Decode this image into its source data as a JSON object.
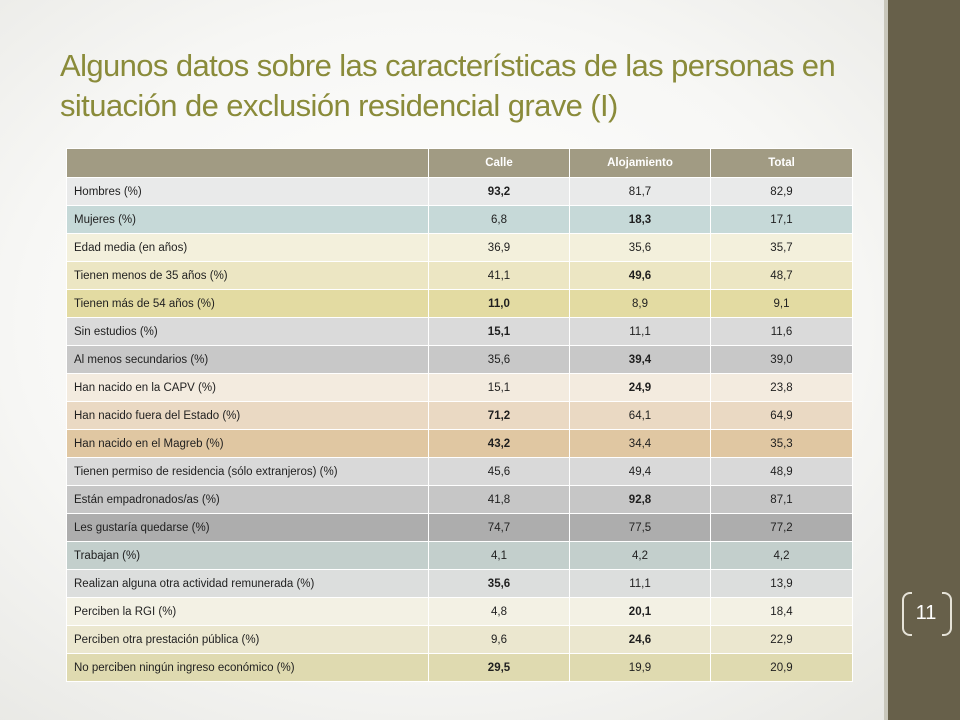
{
  "title": "Algunos datos sobre las características de las personas en situación de exclusión residencial grave (I)",
  "page_number": "11",
  "table": {
    "headers": [
      "",
      "Calle",
      "Alojamiento",
      "Total"
    ],
    "rows": [
      {
        "label": "Hombres (%)",
        "values": [
          "93,2",
          "81,7",
          "82,9"
        ],
        "bold": [
          true,
          false,
          false
        ],
        "bg": "#e9eaea"
      },
      {
        "label": "Mujeres (%)",
        "values": [
          "6,8",
          "18,3",
          "17,1"
        ],
        "bold": [
          false,
          true,
          false
        ],
        "bg": "#c6d9d8"
      },
      {
        "label": "Edad media (en años)",
        "values": [
          "36,9",
          "35,6",
          "35,7"
        ],
        "bold": [
          false,
          false,
          false
        ],
        "bg": "#f3f0dc"
      },
      {
        "label": "Tienen menos de 35 años (%)",
        "values": [
          "41,1",
          "49,6",
          "48,7"
        ],
        "bold": [
          false,
          true,
          false
        ],
        "bg": "#ece6c3"
      },
      {
        "label": "Tienen más de 54 años (%)",
        "values": [
          "11,0",
          "8,9",
          "9,1"
        ],
        "bold": [
          true,
          false,
          false
        ],
        "bg": "#e3dba2"
      },
      {
        "label": "Sin estudios (%)",
        "values": [
          "15,1",
          "11,1",
          "11,6"
        ],
        "bold": [
          true,
          false,
          false
        ],
        "bg": "#dadada"
      },
      {
        "label": "Al menos secundarios (%)",
        "values": [
          "35,6",
          "39,4",
          "39,0"
        ],
        "bold": [
          false,
          true,
          false
        ],
        "bg": "#c8c8c8"
      },
      {
        "label": "Han nacido en la CAPV (%)",
        "values": [
          "15,1",
          "24,9",
          "23,8"
        ],
        "bold": [
          false,
          true,
          false
        ],
        "bg": "#f3ebdf"
      },
      {
        "label": "Han nacido fuera del Estado (%)",
        "values": [
          "71,2",
          "64,1",
          "64,9"
        ],
        "bold": [
          true,
          false,
          false
        ],
        "bg": "#ead9c3"
      },
      {
        "label": "Han nacido en el Magreb (%)",
        "values": [
          "43,2",
          "34,4",
          "35,3"
        ],
        "bold": [
          true,
          false,
          false
        ],
        "bg": "#e0c7a2"
      },
      {
        "label": "Tienen permiso de residencia (sólo extranjeros) (%)",
        "values": [
          "45,6",
          "49,4",
          "48,9"
        ],
        "bold": [
          false,
          false,
          false
        ],
        "bg": "#d9d9d9"
      },
      {
        "label": "Están empadronados/as (%)",
        "values": [
          "41,8",
          "92,8",
          "87,1"
        ],
        "bold": [
          false,
          true,
          false
        ],
        "bg": "#c6c6c6"
      },
      {
        "label": "Les gustaría quedarse (%)",
        "values": [
          "74,7",
          "77,5",
          "77,2"
        ],
        "bold": [
          false,
          false,
          false
        ],
        "bg": "#adadad"
      },
      {
        "label": "Trabajan (%)",
        "values": [
          "4,1",
          "4,2",
          "4,2"
        ],
        "bold": [
          false,
          false,
          false
        ],
        "bg": "#c3cfcc"
      },
      {
        "label": "Realizan alguna otra actividad remunerada (%)",
        "values": [
          "35,6",
          "11,1",
          "13,9"
        ],
        "bold": [
          true,
          false,
          false
        ],
        "bg": "#dcdedd"
      },
      {
        "label": "Perciben la RGI (%)",
        "values": [
          "4,8",
          "20,1",
          "18,4"
        ],
        "bold": [
          false,
          true,
          false
        ],
        "bg": "#f3f1e4"
      },
      {
        "label": "Perciben otra prestación pública (%)",
        "values": [
          "9,6",
          "24,6",
          "22,9"
        ],
        "bold": [
          false,
          true,
          false
        ],
        "bg": "#ebe7cf"
      },
      {
        "label": "No perciben ningún ingreso económico (%)",
        "values": [
          "29,5",
          "19,9",
          "20,9"
        ],
        "bold": [
          true,
          false,
          false
        ],
        "bg": "#dfdab0"
      }
    ]
  }
}
